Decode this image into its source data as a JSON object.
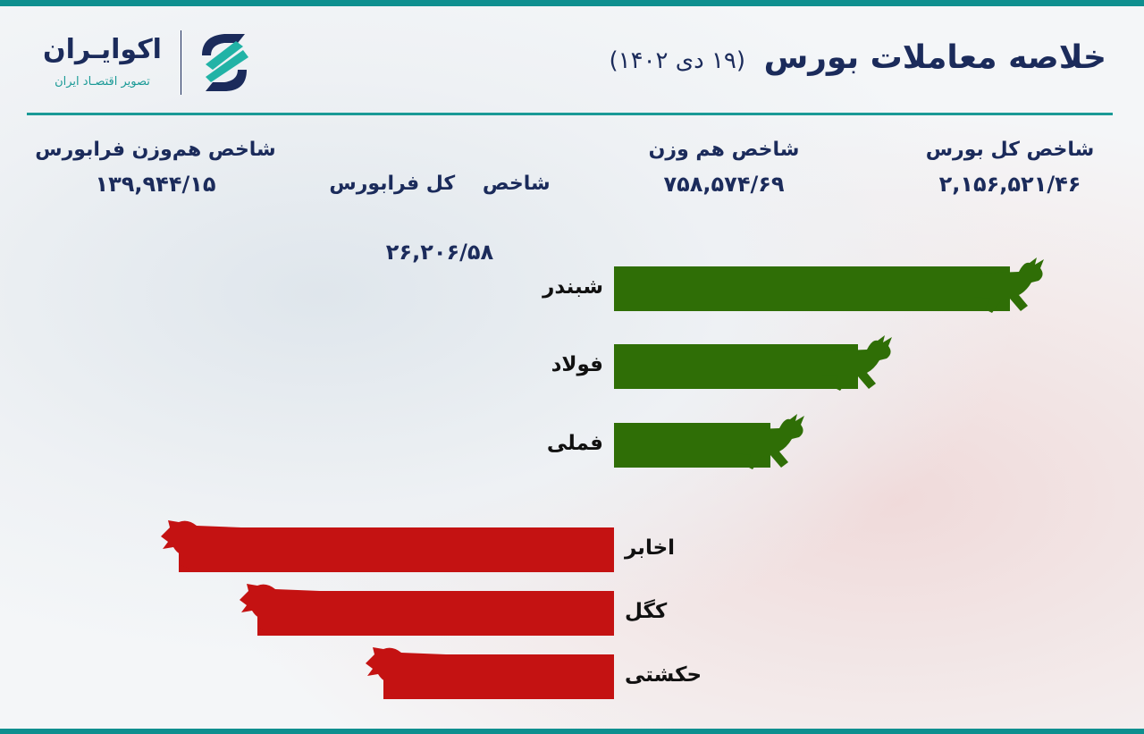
{
  "header": {
    "title": "خلاصه معاملات بورس",
    "date": "(۱۹ دی ۱۴۰۲)"
  },
  "logo": {
    "name": "اکوایـران",
    "tagline": "تصویر اقتصـاد ایران"
  },
  "indices": [
    {
      "label": "شاخص کل بورس",
      "value": "۲,۱۵۶,۵۲۱/۴۶"
    },
    {
      "label": "شاخص هم وزن",
      "value": "۷۵۸,۵۷۴/۶۹"
    },
    {
      "label": "شاخص    کل فرابورس",
      "value": "۲۶,۲۰۶/۵۸"
    },
    {
      "label": "شاخص هم‌وزن فرابورس",
      "value": "۱۳۹,۹۴۴/۱۵"
    }
  ],
  "chart_data": {
    "type": "bar",
    "orientation": "horizontal-diverging",
    "categories": [
      "شبندر",
      "فولاد",
      "فملی",
      "اخابر",
      "کگل",
      "حکشتی"
    ],
    "values": [
      91,
      56,
      36,
      -100,
      -82,
      -53
    ],
    "series_colors": {
      "positive": "#2f6e06",
      "negative": "#c41212"
    },
    "icons": {
      "positive": "bull-icon",
      "negative": "bear-icon"
    },
    "axes": "none",
    "grid": false
  },
  "colors": {
    "accent": "#0e8f8f",
    "text": "#1b2b5b"
  }
}
